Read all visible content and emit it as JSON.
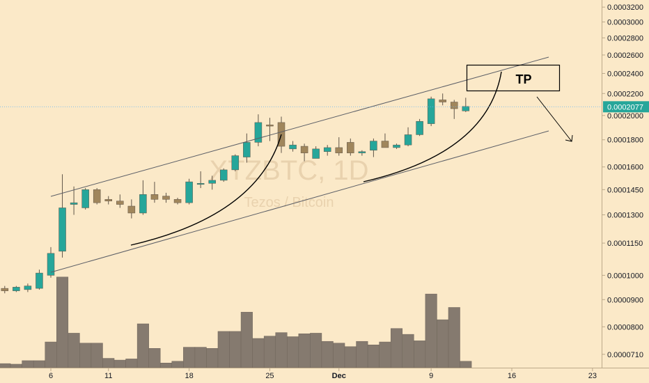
{
  "chart_data": {
    "type": "candlestick",
    "watermark": {
      "symbol": "XTZBTC, 1D",
      "name": "Tezos / Bitcoin"
    },
    "y_scale": "log",
    "ylim": [
      6.7e-05,
      0.00033
    ],
    "y_ticks": [
      "0.0003200",
      "0.0003000",
      "0.0002800",
      "0.0002600",
      "0.0002400",
      "0.0002200",
      "0.0002000",
      "0.0001800",
      "0.0001600",
      "0.0001450",
      "0.0001300",
      "0.0001150",
      "0.0001000",
      "0.0000900",
      "0.0000800",
      "0.0000710"
    ],
    "y_tick_values": [
      0.00032,
      0.0003,
      0.00028,
      0.00026,
      0.00024,
      0.00022,
      0.0002,
      0.00018,
      0.00016,
      0.000145,
      0.00013,
      0.000115,
      0.0001,
      9e-05,
      8e-05,
      7.1e-05
    ],
    "x_ticks": [
      {
        "label": "6",
        "day": 0
      },
      {
        "label": "11",
        "day": 5
      },
      {
        "label": "18",
        "day": 12
      },
      {
        "label": "25",
        "day": 19
      },
      {
        "label": "Dec",
        "day": 25
      },
      {
        "label": "9",
        "day": 33
      },
      {
        "label": "16",
        "day": 40
      },
      {
        "label": "23",
        "day": 47
      }
    ],
    "current_price": {
      "label": "0.0002077",
      "value": 0.0002077
    },
    "annotation": {
      "label": "TP"
    },
    "candles": [
      {
        "day": -4,
        "o": 9.45e-05,
        "h": 9.55e-05,
        "l": 9.25e-05,
        "c": 9.35e-05
      },
      {
        "day": -3,
        "o": 9.35e-05,
        "h": 9.55e-05,
        "l": 9.3e-05,
        "c": 9.5e-05
      },
      {
        "day": -2,
        "o": 9.4e-05,
        "h": 9.65e-05,
        "l": 9.3e-05,
        "c": 9.55e-05
      },
      {
        "day": -1,
        "o": 9.45e-05,
        "h": 0.0001025,
        "l": 9.4e-05,
        "c": 0.000101
      },
      {
        "day": 0,
        "o": 0.0001,
        "h": 0.000113,
        "l": 9.9e-05,
        "c": 0.00011
      },
      {
        "day": 1,
        "o": 0.000111,
        "h": 0.000155,
        "l": 0.000108,
        "c": 0.000134
      },
      {
        "day": 2,
        "o": 0.000136,
        "h": 0.000147,
        "l": 0.00013,
        "c": 0.000137
      },
      {
        "day": 3,
        "o": 0.000134,
        "h": 0.000146,
        "l": 0.000133,
        "c": 0.000145
      },
      {
        "day": 4,
        "o": 0.000145,
        "h": 0.000146,
        "l": 0.000136,
        "c": 0.000137
      },
      {
        "day": 5,
        "o": 0.000139,
        "h": 0.000141,
        "l": 0.000136,
        "c": 0.000138
      },
      {
        "day": 6,
        "o": 0.000138,
        "h": 0.000142,
        "l": 0.000134,
        "c": 0.000136
      },
      {
        "day": 7,
        "o": 0.000135,
        "h": 0.000139,
        "l": 0.000128,
        "c": 0.000131
      },
      {
        "day": 8,
        "o": 0.000131,
        "h": 0.000151,
        "l": 0.00013,
        "c": 0.000142
      },
      {
        "day": 9,
        "o": 0.000142,
        "h": 0.00015,
        "l": 0.000137,
        "c": 0.000139
      },
      {
        "day": 10,
        "o": 0.000141,
        "h": 0.000143,
        "l": 0.000137,
        "c": 0.000139
      },
      {
        "day": 11,
        "o": 0.000139,
        "h": 0.00014,
        "l": 0.000136,
        "c": 0.000137
      },
      {
        "day": 12,
        "o": 0.000137,
        "h": 0.000152,
        "l": 0.000136,
        "c": 0.00015
      },
      {
        "day": 13,
        "o": 0.000149,
        "h": 0.000157,
        "l": 0.000146,
        "c": 0.000149
      },
      {
        "day": 14,
        "o": 0.000149,
        "h": 0.000154,
        "l": 0.000145,
        "c": 0.000151
      },
      {
        "day": 15,
        "o": 0.000151,
        "h": 0.000159,
        "l": 0.00015,
        "c": 0.000158
      },
      {
        "day": 16,
        "o": 0.000158,
        "h": 0.000169,
        "l": 0.000157,
        "c": 0.000168
      },
      {
        "day": 17,
        "o": 0.000167,
        "h": 0.000185,
        "l": 0.000163,
        "c": 0.000178
      },
      {
        "day": 18,
        "o": 0.000178,
        "h": 0.000201,
        "l": 0.000175,
        "c": 0.000194
      },
      {
        "day": 19,
        "o": 0.000192,
        "h": 0.000198,
        "l": 0.000179,
        "c": 0.000191
      },
      {
        "day": 20,
        "o": 0.000194,
        "h": 0.000199,
        "l": 0.00017,
        "c": 0.000175
      },
      {
        "day": 21,
        "o": 0.000173,
        "h": 0.000179,
        "l": 0.000171,
        "c": 0.000176
      },
      {
        "day": 22,
        "o": 0.000175,
        "h": 0.000177,
        "l": 0.000164,
        "c": 0.00017
      },
      {
        "day": 23,
        "o": 0.000166,
        "h": 0.000175,
        "l": 0.000166,
        "c": 0.000173
      },
      {
        "day": 24,
        "o": 0.000171,
        "h": 0.000176,
        "l": 0.000168,
        "c": 0.000174
      },
      {
        "day": 25,
        "o": 0.000174,
        "h": 0.000182,
        "l": 0.000168,
        "c": 0.00017
      },
      {
        "day": 26,
        "o": 0.000178,
        "h": 0.000181,
        "l": 0.000168,
        "c": 0.00017
      },
      {
        "day": 27,
        "o": 0.00017,
        "h": 0.000172,
        "l": 0.000168,
        "c": 0.000171
      },
      {
        "day": 28,
        "o": 0.000172,
        "h": 0.000181,
        "l": 0.000167,
        "c": 0.000179
      },
      {
        "day": 29,
        "o": 0.000179,
        "h": 0.000185,
        "l": 0.000175,
        "c": 0.000174
      },
      {
        "day": 30,
        "o": 0.000174,
        "h": 0.000177,
        "l": 0.000173,
        "c": 0.000176
      },
      {
        "day": 31,
        "o": 0.000176,
        "h": 0.00019,
        "l": 0.000175,
        "c": 0.000184
      },
      {
        "day": 32,
        "o": 0.000184,
        "h": 0.000197,
        "l": 0.000183,
        "c": 0.000195
      },
      {
        "day": 33,
        "o": 0.000193,
        "h": 0.000217,
        "l": 0.000191,
        "c": 0.000215
      },
      {
        "day": 34,
        "o": 0.000214,
        "h": 0.00022,
        "l": 0.000209,
        "c": 0.000212
      },
      {
        "day": 35,
        "o": 0.000212,
        "h": 0.000214,
        "l": 0.000197,
        "c": 0.000206
      },
      {
        "day": 36,
        "o": 0.000204,
        "h": 0.000216,
        "l": 0.000203,
        "c": 0.000208
      }
    ],
    "volume_relative": [
      0.07,
      0.06,
      0.12,
      0.12,
      0.44,
      1.55,
      0.59,
      0.42,
      0.42,
      0.16,
      0.13,
      0.15,
      0.75,
      0.33,
      0.08,
      0.11,
      0.35,
      0.35,
      0.33,
      0.62,
      0.62,
      0.95,
      0.5,
      0.54,
      0.6,
      0.53,
      0.58,
      0.59,
      0.45,
      0.42,
      0.36,
      0.45,
      0.39,
      0.44,
      0.67,
      0.57,
      0.46,
      1.26,
      0.82,
      1.03,
      0.11
    ]
  }
}
